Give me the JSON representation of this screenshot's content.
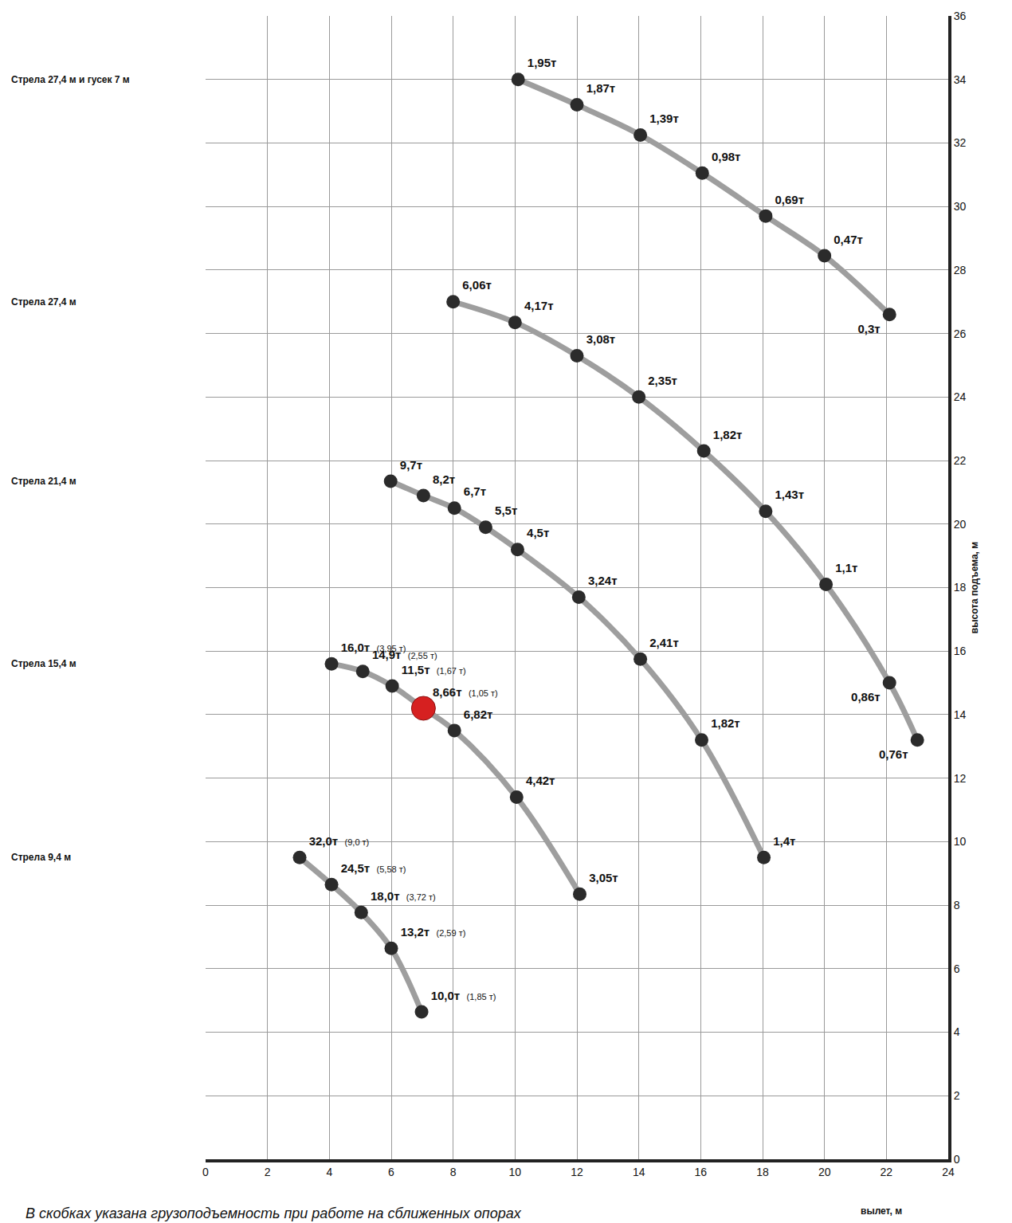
{
  "chart_data": {
    "type": "scatter",
    "xlabel": "вылет, м",
    "ylabel": "высота подъема, м",
    "note": "В скобках указана грузоподъемность при работе на сближенных опорах",
    "xlim": [
      0,
      24
    ],
    "xticks": [
      0,
      2,
      4,
      6,
      8,
      10,
      12,
      14,
      16,
      18,
      20,
      22,
      24
    ],
    "ylim": [
      0,
      36
    ],
    "yticks": [
      0,
      2,
      4,
      6,
      8,
      10,
      12,
      14,
      16,
      18,
      20,
      22,
      24,
      26,
      28,
      30,
      32,
      34,
      36
    ],
    "grid": true,
    "data_labels": true,
    "color": "#9e9e9e",
    "marker": "circle",
    "series": [
      {
        "name": "Стрела 27,4 м и гусек 7 м",
        "x": [
          10.1,
          12.0,
          14.05,
          16.05,
          18.1,
          20.0,
          22.1
        ],
        "values": [
          34.0,
          33.2,
          32.25,
          31.05,
          29.7,
          28.45,
          26.6
        ],
        "value_labels": [
          "1,95т",
          "1,87т",
          "1,39т",
          "0,98т",
          "0,69т",
          "0,47т",
          "0,3т"
        ],
        "reduced_labels": [
          null,
          null,
          null,
          null,
          null,
          null,
          null
        ]
      },
      {
        "name": "Стрела 27,4 м",
        "x": [
          8.0,
          10.0,
          12.0,
          14.0,
          16.1,
          18.1,
          20.05,
          22.1,
          23.0
        ],
        "values": [
          27.0,
          26.35,
          25.3,
          24.0,
          22.3,
          20.4,
          18.1,
          15.0,
          13.2
        ],
        "value_labels": [
          "6,06т",
          "4,17т",
          "3,08т",
          "2,35т",
          "1,82т",
          "1,43т",
          "1,1т",
          "0,86т",
          "0,76т"
        ],
        "reduced_labels": [
          null,
          null,
          null,
          null,
          null,
          null,
          null,
          null,
          null
        ]
      },
      {
        "name": "Стрела 21,4 м",
        "x": [
          5.98,
          7.04,
          8.04,
          9.05,
          10.08,
          12.06,
          14.05,
          16.03,
          18.04
        ],
        "values": [
          21.35,
          20.9,
          20.5,
          19.9,
          19.2,
          17.7,
          15.75,
          13.2,
          9.5
        ],
        "value_labels": [
          "9,7т",
          "8,2т",
          "6,7т",
          "5,5т",
          "4,5т",
          "3,24т",
          "2,41т",
          "1,82т",
          "1,4т"
        ],
        "reduced_labels": [
          null,
          null,
          null,
          null,
          null,
          null,
          null,
          null,
          null
        ]
      },
      {
        "name": "Стрела 15,4 м",
        "x": [
          4.07,
          5.08,
          6.03,
          7.04,
          8.04,
          10.05,
          12.09
        ],
        "values": [
          15.6,
          15.36,
          14.9,
          14.2,
          13.5,
          11.4,
          8.35
        ],
        "value_labels": [
          "16,0т",
          "14,9т",
          "11,5т",
          "8,66т",
          "6,82т",
          "4,42т",
          "3,05т"
        ],
        "reduced_labels": [
          "(3,95 т)",
          "(2,55 т)",
          "(1,67 т)",
          "(1,05 т)",
          null,
          null,
          null
        ]
      },
      {
        "name": "Стрела 9,4 м",
        "x": [
          3.04,
          4.07,
          5.03,
          6.0,
          6.98
        ],
        "values": [
          9.5,
          8.65,
          7.77,
          6.64,
          4.64
        ],
        "value_labels": [
          "32,0т",
          "24,5т",
          "18,0т",
          "13,2т",
          "10,0т"
        ],
        "reduced_labels": [
          "(9,0 т)",
          "(5,58 т)",
          "(3,72 т)",
          "(2,59 т)",
          "(1,85 т)"
        ]
      }
    ],
    "highlight": {
      "x": 7.04,
      "y": 14.2,
      "color": "#d62020"
    }
  }
}
